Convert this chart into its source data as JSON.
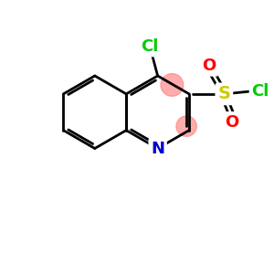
{
  "bg_color": "#ffffff",
  "atom_colors": {
    "C": "#000000",
    "N": "#0000cc",
    "S": "#cccc00",
    "O": "#ff0000",
    "Cl": "#00cc00"
  },
  "bond_color": "#000000",
  "highlight_color": "#ff8080",
  "figsize": [
    3.0,
    3.0
  ],
  "dpi": 100,
  "xlim": [
    0,
    10
  ],
  "ylim": [
    0,
    10
  ]
}
